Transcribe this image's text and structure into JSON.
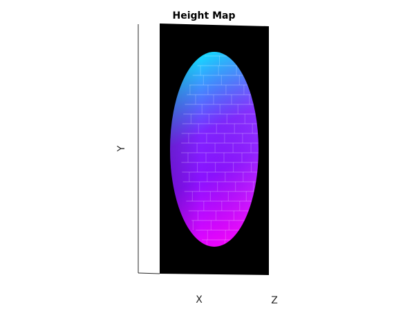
{
  "chart_data": {
    "type": "heatmap",
    "title": "Height Map",
    "xlabel": "X",
    "ylabel": "Y",
    "zlabel": "Z",
    "grid": false,
    "legend": "none",
    "surface": {
      "shape": "ellipsoid",
      "texture": "brick",
      "colormap": "cool",
      "colormap_stops": [
        "#00ffff",
        "#8000ff",
        "#ff00ff"
      ]
    },
    "colors": {
      "background": "#000000",
      "axes_line": "#262626"
    }
  }
}
